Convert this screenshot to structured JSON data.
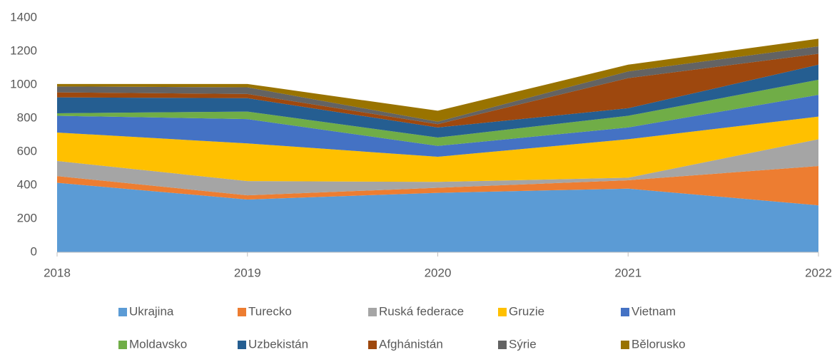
{
  "chart_data": {
    "type": "stacked_area",
    "categories": [
      "2018",
      "2019",
      "2020",
      "2021",
      "2022"
    ],
    "series": [
      {
        "name": "Ukrajina",
        "color": "#5b9bd5",
        "values": [
          415,
          315,
          355,
          380,
          280
        ]
      },
      {
        "name": "Turecko",
        "color": "#ed7d31",
        "values": [
          40,
          25,
          30,
          50,
          235
        ]
      },
      {
        "name": "Ruská federace",
        "color": "#a5a5a5",
        "values": [
          90,
          85,
          35,
          15,
          160
        ]
      },
      {
        "name": "Gruzie",
        "color": "#ffc000",
        "values": [
          170,
          225,
          150,
          230,
          135
        ]
      },
      {
        "name": "Vietnam",
        "color": "#4472c4",
        "values": [
          100,
          145,
          65,
          70,
          130
        ]
      },
      {
        "name": "Moldavsko",
        "color": "#70ad47",
        "values": [
          15,
          45,
          50,
          70,
          90
        ]
      },
      {
        "name": "Uzbekistán",
        "color": "#255e91",
        "values": [
          95,
          80,
          60,
          45,
          90
        ]
      },
      {
        "name": "Afghánistán",
        "color": "#9e480e",
        "values": [
          30,
          25,
          20,
          180,
          65
        ]
      },
      {
        "name": "Sýrie",
        "color": "#636363",
        "values": [
          35,
          40,
          15,
          40,
          45
        ]
      },
      {
        "name": "Bělorusko",
        "color": "#997300",
        "values": [
          15,
          20,
          65,
          40,
          45
        ]
      }
    ],
    "ylim": [
      0,
      1400
    ],
    "yticks": [
      0,
      200,
      400,
      600,
      800,
      1000,
      1200,
      1400
    ],
    "grid": false,
    "legend": "bottom"
  }
}
